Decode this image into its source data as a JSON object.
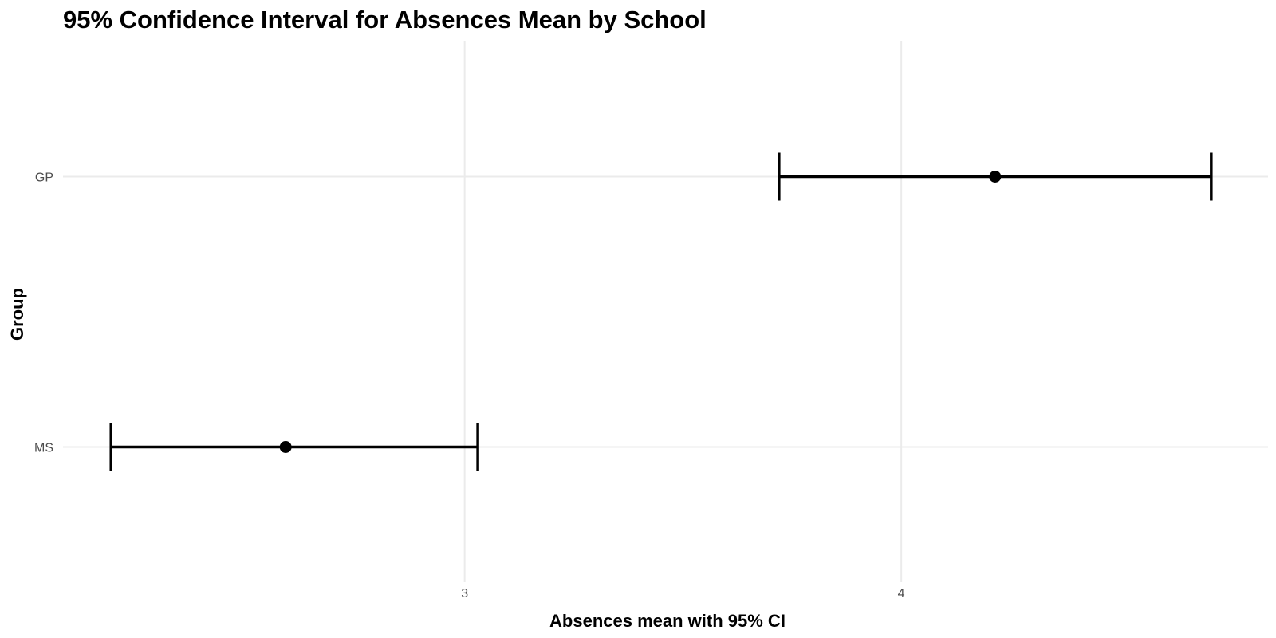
{
  "chart_data": {
    "type": "errorbar",
    "title": "95% Confidence Interval for Absences Mean by School",
    "xlabel": "Absences mean with 95% CI",
    "ylabel": "Group",
    "xlim": [
      2.08,
      4.84
    ],
    "x_ticks": [
      3,
      4
    ],
    "grid": true,
    "legend": "none",
    "categories": [
      "GP",
      "MS"
    ],
    "series": [
      {
        "category": "GP",
        "mean": 4.215,
        "lower": 3.72,
        "upper": 4.71
      },
      {
        "category": "MS",
        "mean": 2.59,
        "lower": 2.19,
        "upper": 3.03
      }
    ],
    "colors": {
      "marks": "#000000",
      "grid": "#ebebeb",
      "tick_text": "#4d4d4d"
    }
  }
}
